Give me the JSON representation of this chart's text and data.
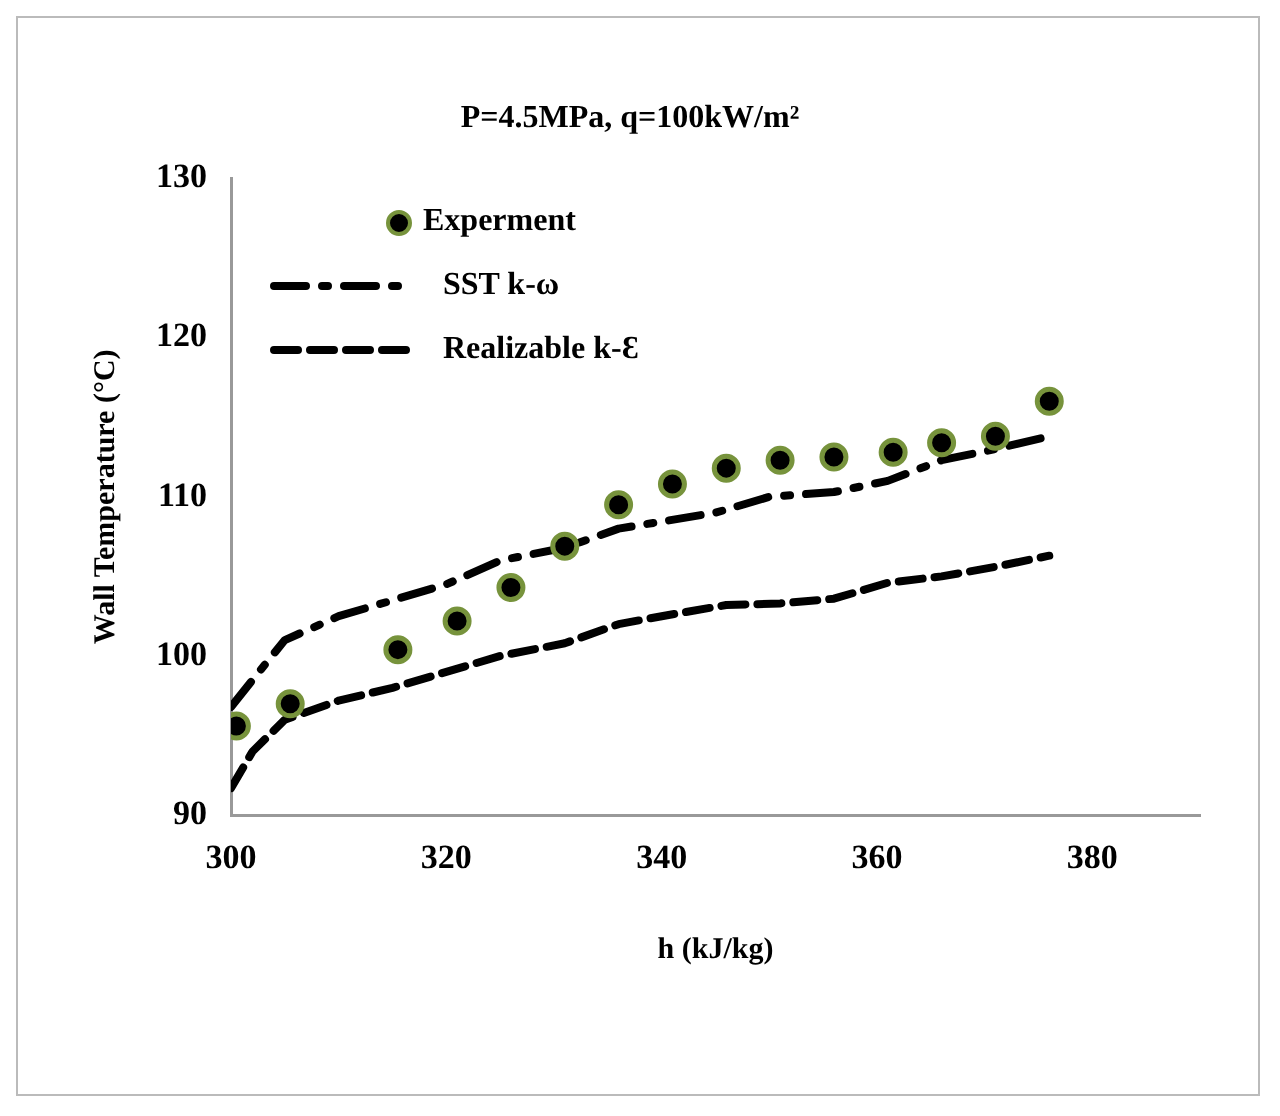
{
  "chart_data": {
    "type": "line",
    "title": "P=4.5MPa, q=100kW/m²",
    "xlabel": "h (kJ/kg)",
    "ylabel": "Wall Temperature (°C)",
    "xlim": [
      300,
      390
    ],
    "xticks": [
      300,
      320,
      340,
      360,
      380
    ],
    "ylim": [
      90,
      130
    ],
    "yticks": [
      90,
      100,
      110,
      120,
      130
    ],
    "grid": false,
    "legend": "top left",
    "series": [
      {
        "name": "Experment",
        "type": "scatter",
        "marker": "circle",
        "color": "#000000",
        "x": [
          300.5,
          305.5,
          315.5,
          321,
          326,
          331,
          336,
          341,
          346,
          351,
          356,
          361.5,
          366,
          371,
          376
        ],
        "values": [
          95.6,
          97,
          100.4,
          102.2,
          104.3,
          106.9,
          109.5,
          110.8,
          111.8,
          112.3,
          112.5,
          112.8,
          113.4,
          113.8,
          116
        ]
      },
      {
        "name": "SST k-ω",
        "type": "line",
        "line_style": "dashdot",
        "color": "#000000",
        "x": [
          300,
          302,
          305,
          310,
          315,
          320,
          325,
          331,
          336,
          345,
          350,
          356,
          361,
          366,
          371,
          376
        ],
        "values": [
          96.8,
          98.5,
          101,
          102.5,
          103.5,
          104.5,
          106,
          106.8,
          108,
          109,
          110,
          110.3,
          111,
          112.3,
          113,
          113.8
        ]
      },
      {
        "name": "Realizable k-Ɛ",
        "type": "line",
        "line_style": "dashed",
        "color": "#000000",
        "x": [
          300,
          302,
          305,
          310,
          315,
          320,
          325,
          331,
          336,
          340,
          346,
          351,
          356,
          361,
          366,
          371,
          376
        ],
        "values": [
          91.7,
          94,
          96,
          97.2,
          98,
          99,
          100,
          100.8,
          102,
          102.5,
          103.2,
          103.3,
          103.6,
          104.6,
          105,
          105.6,
          106.3
        ]
      }
    ]
  }
}
